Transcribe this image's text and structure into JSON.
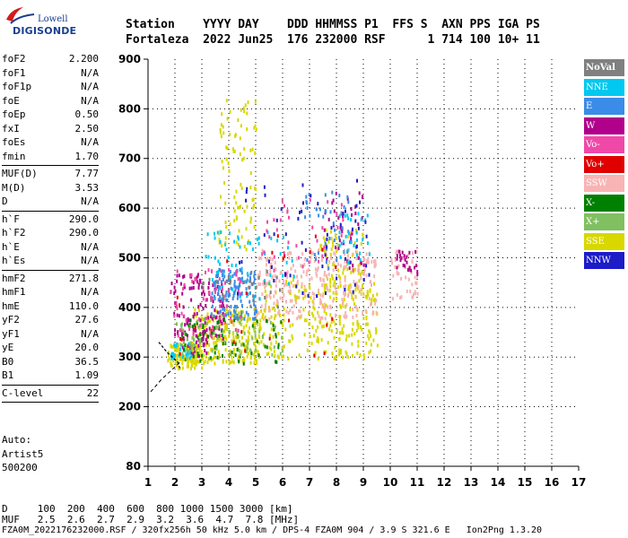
{
  "logo": {
    "line1": "Lowell",
    "line2": "DIGISONDE"
  },
  "header": {
    "line1": "Station    YYYY DAY    DDD HHMMSS P1  FFS S  AXN PPS IGA PS",
    "line2": "Fortaleza  2022 Jun25  176 232000 RSF      1 714 100 10+ 11"
  },
  "params": [
    [
      {
        "k": "foF2",
        "v": "2.200"
      },
      {
        "k": "foF1",
        "v": "N/A"
      },
      {
        "k": "foF1p",
        "v": "N/A"
      },
      {
        "k": "foE",
        "v": "N/A"
      },
      {
        "k": "foEp",
        "v": "0.50"
      },
      {
        "k": "fxI",
        "v": "2.50"
      },
      {
        "k": "foEs",
        "v": "N/A"
      },
      {
        "k": "fmin",
        "v": "1.70"
      }
    ],
    [
      {
        "k": "MUF(D)",
        "v": "7.77"
      },
      {
        "k": "M(D)",
        "v": "3.53"
      },
      {
        "k": "D",
        "v": "N/A"
      }
    ],
    [
      {
        "k": "h`F",
        "v": "290.0"
      },
      {
        "k": "h`F2",
        "v": "290.0"
      },
      {
        "k": "h`E",
        "v": "N/A"
      },
      {
        "k": "h`Es",
        "v": "N/A"
      }
    ],
    [
      {
        "k": "hmF2",
        "v": "271.8"
      },
      {
        "k": "hmF1",
        "v": "N/A"
      },
      {
        "k": "hmE",
        "v": "110.0"
      },
      {
        "k": "yF2",
        "v": "27.6"
      },
      {
        "k": "yF1",
        "v": "N/A"
      },
      {
        "k": "yE",
        "v": "20.0"
      },
      {
        "k": "B0",
        "v": "36.5"
      },
      {
        "k": "B1",
        "v": "1.09"
      }
    ],
    [
      {
        "k": "C-level",
        "v": "22"
      }
    ]
  ],
  "auto": {
    "line1": "Auto:",
    "line2": "Artist5",
    "line3": "500200"
  },
  "legend": [
    {
      "label": "NoVal",
      "color": "#808080"
    },
    {
      "label": "NNE",
      "color": "#00c8f0"
    },
    {
      "label": "E",
      "color": "#3a8ce8"
    },
    {
      "label": "W",
      "color": "#b0008c"
    },
    {
      "label": "Vo-",
      "color": "#f048a8"
    },
    {
      "label": "Vo+",
      "color": "#e00000"
    },
    {
      "label": "SSW",
      "color": "#f8b4b4"
    },
    {
      "label": "X-",
      "color": "#008000"
    },
    {
      "label": "X+",
      "color": "#80c060"
    },
    {
      "label": "SSE",
      "color": "#d8d800"
    },
    {
      "label": "NNW",
      "color": "#1c1cc8"
    }
  ],
  "footer": {
    "line1": "D     100  200  400  600  800 1000 1500 3000 [km]",
    "line2": "MUF   2.5  2.6  2.7  2.9  3.2  3.6  4.7  7.8 [MHz]",
    "line3": "FZA0M_2022176232000.RSF / 320fx256h 50 kHz 5.0 km / DPS-4 FZA0M 904 / 3.9 S 321.6 E   Ion2Png 1.3.20"
  },
  "chart_data": {
    "type": "scatter",
    "xlim": [
      1,
      17
    ],
    "ylim": [
      80,
      900
    ],
    "x_ticks": [
      1,
      2,
      3,
      4,
      5,
      6,
      7,
      8,
      9,
      10,
      11,
      12,
      13,
      14,
      15,
      16,
      17
    ],
    "y_ticks": [
      80,
      200,
      300,
      400,
      500,
      600,
      700,
      800,
      900
    ],
    "grid": true,
    "legend_position": "right",
    "profile_line": {
      "x": [
        1.1,
        1.5,
        1.9,
        2.2
      ],
      "y": [
        230,
        255,
        275,
        290
      ]
    },
    "profile_trace": {
      "x": [
        1.4,
        1.7,
        1.9,
        2.1,
        2.2
      ],
      "y": [
        330,
        310,
        300,
        290,
        275
      ]
    },
    "clusters": [
      {
        "series": "SSE",
        "x": [
          1.7,
          3.0
        ],
        "y": [
          280,
          330
        ],
        "n": 120
      },
      {
        "series": "SSE",
        "x": [
          2.6,
          5.2
        ],
        "y": [
          290,
          400
        ],
        "n": 260
      },
      {
        "series": "SSE",
        "x": [
          3.6,
          5.0
        ],
        "y": [
          520,
          830
        ],
        "n": 90
      },
      {
        "series": "SSE",
        "x": [
          5.2,
          9.5
        ],
        "y": [
          300,
          460
        ],
        "n": 260
      },
      {
        "series": "SSE",
        "x": [
          7.3,
          9.0
        ],
        "y": [
          430,
          560
        ],
        "n": 90
      },
      {
        "series": "SSW",
        "x": [
          5.0,
          9.5
        ],
        "y": [
          380,
          520
        ],
        "n": 280
      },
      {
        "series": "SSW",
        "x": [
          10.0,
          11.0
        ],
        "y": [
          420,
          520
        ],
        "n": 40
      },
      {
        "series": "W",
        "x": [
          1.8,
          3.8
        ],
        "y": [
          340,
          470
        ],
        "n": 110
      },
      {
        "series": "W",
        "x": [
          2.2,
          3.2
        ],
        "y": [
          300,
          360
        ],
        "n": 40
      },
      {
        "series": "W",
        "x": [
          7.5,
          9.0
        ],
        "y": [
          480,
          640
        ],
        "n": 40
      },
      {
        "series": "W",
        "x": [
          10.2,
          11.0
        ],
        "y": [
          470,
          520
        ],
        "n": 25
      },
      {
        "series": "E",
        "x": [
          3.3,
          5.0
        ],
        "y": [
          380,
          480
        ],
        "n": 130
      },
      {
        "series": "E",
        "x": [
          6.8,
          8.5
        ],
        "y": [
          480,
          640
        ],
        "n": 40
      },
      {
        "series": "NNE",
        "x": [
          1.8,
          2.6
        ],
        "y": [
          300,
          330
        ],
        "n": 30
      },
      {
        "series": "NNE",
        "x": [
          3.0,
          6.5
        ],
        "y": [
          420,
          560
        ],
        "n": 60
      },
      {
        "series": "NNE",
        "x": [
          8.0,
          9.2
        ],
        "y": [
          490,
          600
        ],
        "n": 30
      },
      {
        "series": "Vo-",
        "x": [
          1.8,
          4.5
        ],
        "y": [
          340,
          480
        ],
        "n": 70
      },
      {
        "series": "Vo-",
        "x": [
          5.2,
          8.6
        ],
        "y": [
          470,
          620
        ],
        "n": 40
      },
      {
        "series": "NNW",
        "x": [
          4.0,
          9.2
        ],
        "y": [
          420,
          660
        ],
        "n": 60
      },
      {
        "series": "X-",
        "x": [
          2.2,
          6.0
        ],
        "y": [
          290,
          380
        ],
        "n": 70
      },
      {
        "series": "X+",
        "x": [
          2.0,
          6.0
        ],
        "y": [
          300,
          380
        ],
        "n": 70
      },
      {
        "series": "Vo+",
        "x": [
          2.0,
          8.0
        ],
        "y": [
          300,
          560
        ],
        "n": 25
      },
      {
        "series": "NoVal",
        "x": [
          3.0,
          6.0
        ],
        "y": [
          400,
          480
        ],
        "n": 30
      }
    ]
  }
}
